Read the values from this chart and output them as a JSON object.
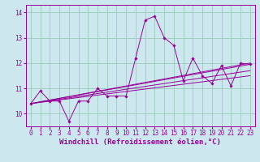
{
  "xlabel": "Windchill (Refroidissement éolien,°C)",
  "background_color": "#cce8ee",
  "line_color": "#990099",
  "grid_color": "#99ccbb",
  "xlim": [
    -0.5,
    23.5
  ],
  "ylim": [
    9.5,
    14.3
  ],
  "yticks": [
    10,
    11,
    12,
    13,
    14
  ],
  "xticks": [
    0,
    1,
    2,
    3,
    4,
    5,
    6,
    7,
    8,
    9,
    10,
    11,
    12,
    13,
    14,
    15,
    16,
    17,
    18,
    19,
    20,
    21,
    22,
    23
  ],
  "main_series": [
    10.4,
    10.9,
    10.5,
    10.5,
    9.7,
    10.5,
    10.5,
    11.0,
    10.7,
    10.7,
    10.7,
    12.2,
    13.7,
    13.85,
    13.0,
    12.7,
    11.3,
    12.2,
    11.5,
    11.2,
    11.9,
    11.1,
    12.0,
    11.95
  ],
  "trend_lines": [
    {
      "x0": 0,
      "y0": 10.4,
      "x1": 23,
      "y1": 12.0
    },
    {
      "x0": 0,
      "y0": 10.4,
      "x1": 23,
      "y1": 11.95
    },
    {
      "x0": 0,
      "y0": 10.4,
      "x1": 23,
      "y1": 11.7
    },
    {
      "x0": 0,
      "y0": 10.4,
      "x1": 23,
      "y1": 11.5
    }
  ],
  "axis_fontsize": 6.5,
  "tick_fontsize": 5.5
}
